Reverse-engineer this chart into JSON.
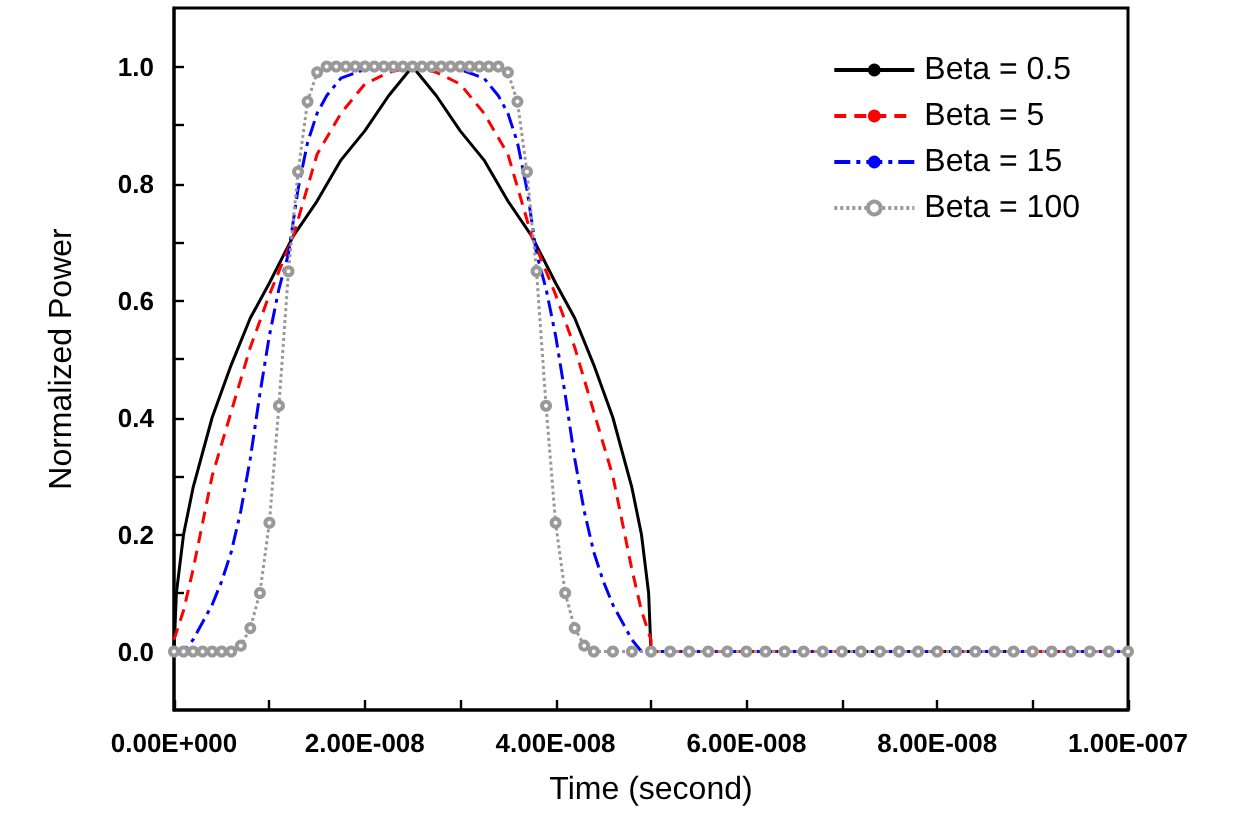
{
  "chart_data": {
    "type": "line",
    "xlabel": "Time (second)",
    "ylabel": "Normalized Power",
    "xlim": [
      0,
      1e-07
    ],
    "ylim": [
      -0.1,
      1.1
    ],
    "xticks": [
      {
        "value": 0,
        "label": "0.00E+000"
      },
      {
        "value": 1e-08,
        "label": null
      },
      {
        "value": 2e-08,
        "label": "2.00E-008"
      },
      {
        "value": 3e-08,
        "label": null
      },
      {
        "value": 4e-08,
        "label": "4.00E-008"
      },
      {
        "value": 5e-08,
        "label": null
      },
      {
        "value": 6e-08,
        "label": "6.00E-008"
      },
      {
        "value": 7e-08,
        "label": null
      },
      {
        "value": 8e-08,
        "label": "8.00E-008"
      },
      {
        "value": 9e-08,
        "label": null
      },
      {
        "value": 1e-07,
        "label": "1.00E-007"
      }
    ],
    "yticks": [
      {
        "value": 0,
        "label": "0.0"
      },
      {
        "value": 0.1,
        "label": null
      },
      {
        "value": 0.2,
        "label": "0.2"
      },
      {
        "value": 0.3,
        "label": null
      },
      {
        "value": 0.4,
        "label": "0.4"
      },
      {
        "value": 0.5,
        "label": null
      },
      {
        "value": 0.6,
        "label": "0.6"
      },
      {
        "value": 0.7,
        "label": null
      },
      {
        "value": 0.8,
        "label": "0.8"
      },
      {
        "value": 0.9,
        "label": null
      },
      {
        "value": 1,
        "label": "1.0"
      }
    ],
    "grid": false,
    "legend": "top right",
    "series": [
      {
        "name": "Beta = 0.5",
        "color": "#000000",
        "line_style": "solid",
        "marker": "none",
        "x": [
          0,
          2.5e-10,
          1e-09,
          2e-09,
          4e-09,
          6e-09,
          8e-09,
          1e-08,
          1.25e-08,
          1.5e-08,
          1.75e-08,
          2e-08,
          2.25e-08,
          2.5e-08,
          2.75e-08,
          3e-08,
          3.25e-08,
          3.5e-08,
          3.75e-08,
          4e-08,
          4.2e-08,
          4.4e-08,
          4.6e-08,
          4.8e-08,
          4.9e-08,
          4.975e-08,
          5e-08,
          1e-07
        ],
        "values": [
          0,
          0.1,
          0.2,
          0.28,
          0.4,
          0.49,
          0.57,
          0.63,
          0.71,
          0.77,
          0.84,
          0.89,
          0.95,
          1,
          0.95,
          0.89,
          0.84,
          0.77,
          0.71,
          0.63,
          0.57,
          0.49,
          0.4,
          0.28,
          0.2,
          0.1,
          0,
          0
        ]
      },
      {
        "name": "Beta = 5",
        "color": "#ff0000",
        "line_style": "dashed",
        "marker": "none",
        "x": [
          0,
          1e-09,
          2e-09,
          3e-09,
          4e-09,
          6e-09,
          8e-09,
          1e-08,
          1.25e-08,
          1.5e-08,
          1.75e-08,
          2e-08,
          2.25e-08,
          2.5e-08,
          2.75e-08,
          3e-08,
          3.25e-08,
          3.5e-08,
          3.75e-08,
          4e-08,
          4.2e-08,
          4.4e-08,
          4.6e-08,
          4.7e-08,
          4.8e-08,
          4.9e-08,
          5e-08,
          5e-08,
          1e-07
        ],
        "values": [
          0.02,
          0.07,
          0.14,
          0.22,
          0.3,
          0.41,
          0.52,
          0.61,
          0.71,
          0.85,
          0.92,
          0.97,
          0.99,
          1,
          0.99,
          0.97,
          0.92,
          0.85,
          0.71,
          0.61,
          0.52,
          0.41,
          0.3,
          0.22,
          0.14,
          0.07,
          0.02,
          0,
          0
        ]
      },
      {
        "name": "Beta = 15",
        "color": "#0000ff",
        "line_style": "dashdot",
        "marker": "none",
        "x": [
          0,
          1e-09,
          2e-09,
          3e-09,
          4e-09,
          5e-09,
          6e-09,
          7e-09,
          8e-09,
          9e-09,
          1e-08,
          1.1e-08,
          1.2e-08,
          1.3e-08,
          1.4e-08,
          1.5e-08,
          1.6e-08,
          1.75e-08,
          2e-08,
          2.2e-08,
          2.5e-08,
          2.8e-08,
          3e-08,
          3.25e-08,
          3.4e-08,
          3.5e-08,
          3.6e-08,
          3.7e-08,
          3.8e-08,
          3.9e-08,
          4e-08,
          4.1e-08,
          4.2e-08,
          4.3e-08,
          4.4e-08,
          4.5e-08,
          4.6e-08,
          4.7e-08,
          4.8e-08,
          4.9e-08,
          5e-08,
          1e-07
        ],
        "values": [
          0,
          0,
          0.02,
          0.05,
          0.08,
          0.12,
          0.17,
          0.24,
          0.33,
          0.44,
          0.54,
          0.62,
          0.68,
          0.79,
          0.87,
          0.92,
          0.95,
          0.98,
          0.995,
          1,
          1,
          1,
          0.995,
          0.98,
          0.95,
          0.92,
          0.87,
          0.79,
          0.68,
          0.62,
          0.54,
          0.44,
          0.33,
          0.24,
          0.17,
          0.12,
          0.08,
          0.05,
          0.02,
          0,
          0,
          0
        ]
      },
      {
        "name": "Beta = 100",
        "color": "#999999",
        "line_style": "dotted",
        "marker": "circle",
        "x": [
          0,
          1e-09,
          2e-09,
          3e-09,
          4e-09,
          5e-09,
          6e-09,
          7e-09,
          8e-09,
          9e-09,
          1e-08,
          1.1e-08,
          1.2e-08,
          1.3e-08,
          1.4e-08,
          1.5e-08,
          1.6e-08,
          1.7e-08,
          1.8e-08,
          1.9e-08,
          2e-08,
          2.1e-08,
          2.2e-08,
          2.3e-08,
          2.4e-08,
          2.5e-08,
          2.6e-08,
          2.7e-08,
          2.8e-08,
          2.9e-08,
          3e-08,
          3.1e-08,
          3.2e-08,
          3.3e-08,
          3.4e-08,
          3.5e-08,
          3.6e-08,
          3.7e-08,
          3.8e-08,
          3.9e-08,
          4e-08,
          4.1e-08,
          4.2e-08,
          4.3e-08,
          4.4e-08,
          4.6e-08,
          4.8e-08,
          5e-08,
          5.2e-08,
          5.4e-08,
          5.6e-08,
          5.8e-08,
          6e-08,
          6.2e-08,
          6.4e-08,
          6.6e-08,
          6.8e-08,
          7e-08,
          7.2e-08,
          7.4e-08,
          7.6e-08,
          7.8e-08,
          8e-08,
          8.2e-08,
          8.4e-08,
          8.6e-08,
          8.8e-08,
          9e-08,
          9.2e-08,
          9.4e-08,
          9.6e-08,
          9.8e-08,
          1e-07
        ],
        "values": [
          0,
          0,
          0,
          0,
          0,
          0,
          0,
          0.01,
          0.04,
          0.1,
          0.22,
          0.42,
          0.65,
          0.82,
          0.94,
          0.99,
          1,
          1,
          1,
          1,
          1,
          1,
          1,
          1,
          1,
          1,
          1,
          1,
          1,
          1,
          1,
          1,
          1,
          1,
          1,
          0.99,
          0.94,
          0.82,
          0.65,
          0.42,
          0.22,
          0.1,
          0.04,
          0.01,
          0,
          0,
          0,
          0,
          0,
          0,
          0,
          0,
          0,
          0,
          0,
          0,
          0,
          0,
          0,
          0,
          0,
          0,
          0,
          0,
          0,
          0,
          0,
          0,
          0,
          0,
          0,
          0,
          0
        ]
      }
    ]
  }
}
